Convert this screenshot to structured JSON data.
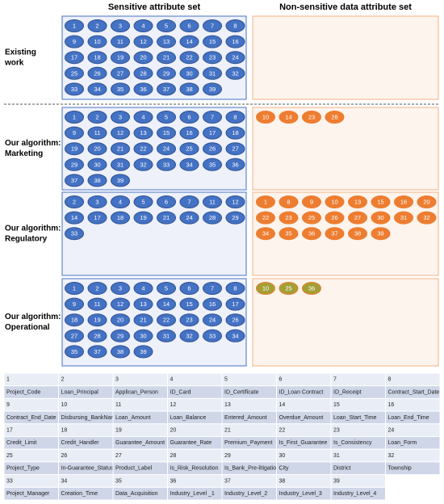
{
  "header": {
    "sensitive": "Sensitive attribute set",
    "non_sensitive": "Non-sensitive data attribute set"
  },
  "rows": [
    {
      "label": [
        "Existing",
        "work"
      ],
      "sensitive": [
        1,
        2,
        3,
        4,
        5,
        6,
        7,
        8,
        9,
        10,
        11,
        12,
        13,
        14,
        15,
        16,
        17,
        18,
        19,
        20,
        21,
        22,
        23,
        24,
        25,
        26,
        27,
        28,
        29,
        30,
        31,
        32,
        33,
        34,
        35,
        36,
        37,
        38,
        39
      ],
      "non_sensitive": []
    },
    {
      "label": [
        "Our algorithm:",
        "Marketing"
      ],
      "sensitive": [
        1,
        2,
        3,
        4,
        5,
        6,
        7,
        8,
        9,
        11,
        12,
        13,
        15,
        16,
        17,
        18,
        19,
        20,
        21,
        22,
        24,
        25,
        26,
        27,
        29,
        30,
        31,
        32,
        33,
        34,
        35,
        36,
        37,
        38,
        39
      ],
      "non_sensitive": [
        10,
        14,
        23,
        28
      ]
    },
    {
      "label": [
        "Our algorithm:",
        "Regulatory"
      ],
      "sensitive": [
        2,
        3,
        4,
        5,
        6,
        7,
        11,
        12,
        14,
        17,
        18,
        19,
        21,
        24,
        28,
        29,
        33
      ],
      "non_sensitive": [
        1,
        8,
        9,
        10,
        13,
        15,
        16,
        20,
        22,
        23,
        25,
        26,
        27,
        30,
        31,
        32,
        34,
        35,
        36,
        37,
        38,
        39
      ]
    },
    {
      "label": [
        "Our algorithm:",
        "Operational"
      ],
      "sensitive": [
        1,
        2,
        3,
        4,
        5,
        6,
        7,
        8,
        9,
        11,
        12,
        13,
        14,
        15,
        16,
        17,
        18,
        19,
        20,
        21,
        22,
        23,
        24,
        26,
        27,
        28,
        29,
        30,
        31,
        32,
        33,
        34,
        35,
        37,
        38,
        39
      ],
      "non_sensitive": [
        10,
        25,
        36
      ]
    }
  ],
  "table": [
    {
      "id": 1,
      "name": "Project_Code"
    },
    {
      "id": 2,
      "name": "Loan_Principal"
    },
    {
      "id": 3,
      "name": "Applican_Person"
    },
    {
      "id": 4,
      "name": "ID_Card"
    },
    {
      "id": 5,
      "name": "ID_Certificate"
    },
    {
      "id": 6,
      "name": "ID_Loan Contract"
    },
    {
      "id": 7,
      "name": "ID_Receipt"
    },
    {
      "id": 8,
      "name": "Contract_Start_Date"
    },
    {
      "id": 9,
      "name": "Contract_End_Date"
    },
    {
      "id": 10,
      "name": "Disbursing_BankName"
    },
    {
      "id": 11,
      "name": "Loan_Amount"
    },
    {
      "id": 12,
      "name": "Loan_Balance"
    },
    {
      "id": 13,
      "name": "Entered_Amount"
    },
    {
      "id": 14,
      "name": "Overdue_Amount"
    },
    {
      "id": 15,
      "name": "Loan_Start_Time"
    },
    {
      "id": 16,
      "name": "Loan_End_Time"
    },
    {
      "id": 17,
      "name": "Credit_Limit"
    },
    {
      "id": 18,
      "name": "Credit_Handler"
    },
    {
      "id": 19,
      "name": "Guarantee_Amount"
    },
    {
      "id": 20,
      "name": "Guarantee_Rate"
    },
    {
      "id": 21,
      "name": "Premium_Payment"
    },
    {
      "id": 22,
      "name": "Is_First_Guarantee"
    },
    {
      "id": 23,
      "name": "Is_Consistency"
    },
    {
      "id": 24,
      "name": "Loan_Form"
    },
    {
      "id": 25,
      "name": "Project_Type"
    },
    {
      "id": 26,
      "name": "In-Guarantee_Status"
    },
    {
      "id": 27,
      "name": "Product_Label"
    },
    {
      "id": 28,
      "name": "Is_Risk_Resolution"
    },
    {
      "id": 29,
      "name": "Is_Bank_Pre-litigation"
    },
    {
      "id": 30,
      "name": "City"
    },
    {
      "id": 31,
      "name": "District"
    },
    {
      "id": 32,
      "name": "Township"
    },
    {
      "id": 33,
      "name": "Project_Manager"
    },
    {
      "id": 34,
      "name": "Creation_Time"
    },
    {
      "id": 35,
      "name": "Data_Acquisition"
    },
    {
      "id": 36,
      "name": "Industry_Level _1"
    },
    {
      "id": 37,
      "name": "Industry_Level_2"
    },
    {
      "id": 38,
      "name": "Industry_Level_3"
    },
    {
      "id": 39,
      "name": "Industry_Level_4"
    }
  ]
}
